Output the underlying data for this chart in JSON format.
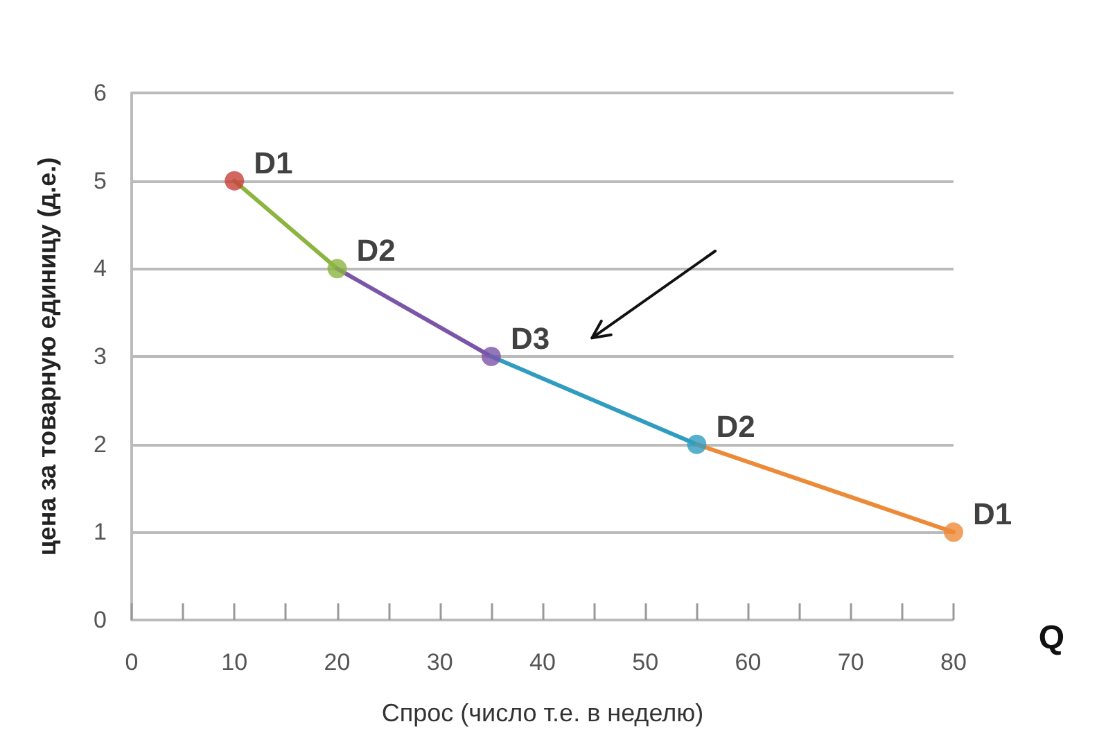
{
  "chart_data": {
    "type": "line",
    "xlabel": "Спрос (число т.е. в неделю)",
    "ylabel": "цена за товарную единицу (д.е.)",
    "xlim": [
      0,
      80
    ],
    "xticks": [
      0,
      {
        "value": 5,
        "label": null
      },
      10,
      {
        "value": 15,
        "label": null
      },
      20,
      {
        "value": 25,
        "label": null
      },
      30,
      {
        "value": 35,
        "label": null
      },
      40,
      {
        "value": 45,
        "label": null
      },
      50,
      {
        "value": 55,
        "label": null
      },
      60,
      {
        "value": 65,
        "label": null
      },
      70,
      {
        "value": 75,
        "label": null
      },
      80
    ],
    "ylim": [
      0,
      6
    ],
    "yticks": [
      0,
      1,
      2,
      3,
      4,
      5,
      6
    ],
    "grid": "y",
    "series": [
      {
        "type": "line",
        "marker": "none",
        "color": "#8bb440",
        "x": [
          10,
          20
        ],
        "values": [
          5,
          4
        ]
      },
      {
        "type": "line",
        "marker": "none",
        "color": "#7a55a8",
        "x": [
          20,
          35
        ],
        "values": [
          4,
          3
        ]
      },
      {
        "type": "line",
        "marker": "none",
        "color": "#2f9cc0",
        "x": [
          35,
          55
        ],
        "values": [
          3,
          2
        ]
      },
      {
        "type": "line",
        "marker": "none",
        "color": "#ed8a38",
        "x": [
          55,
          80
        ],
        "values": [
          2,
          1
        ]
      },
      {
        "type": "scatter",
        "marker": "circle",
        "x": [
          10,
          20,
          35,
          55,
          80
        ],
        "values": [
          5,
          4,
          3,
          2,
          1
        ],
        "colors": [
          "#c9403a",
          "#8bb440",
          "#7a55a8",
          "#2f9cc0",
          "#ed8a38"
        ]
      }
    ],
    "annotations": [
      {
        "text": "D1",
        "x": 10,
        "y": 5
      },
      {
        "text": "D2",
        "x": 20,
        "y": 4
      },
      {
        "text": "D3",
        "x": 35,
        "y": 3
      },
      {
        "text": "D2",
        "x": 55,
        "y": 2
      },
      {
        "text": "D1",
        "x": 80,
        "y": 1
      },
      "Q"
    ]
  }
}
